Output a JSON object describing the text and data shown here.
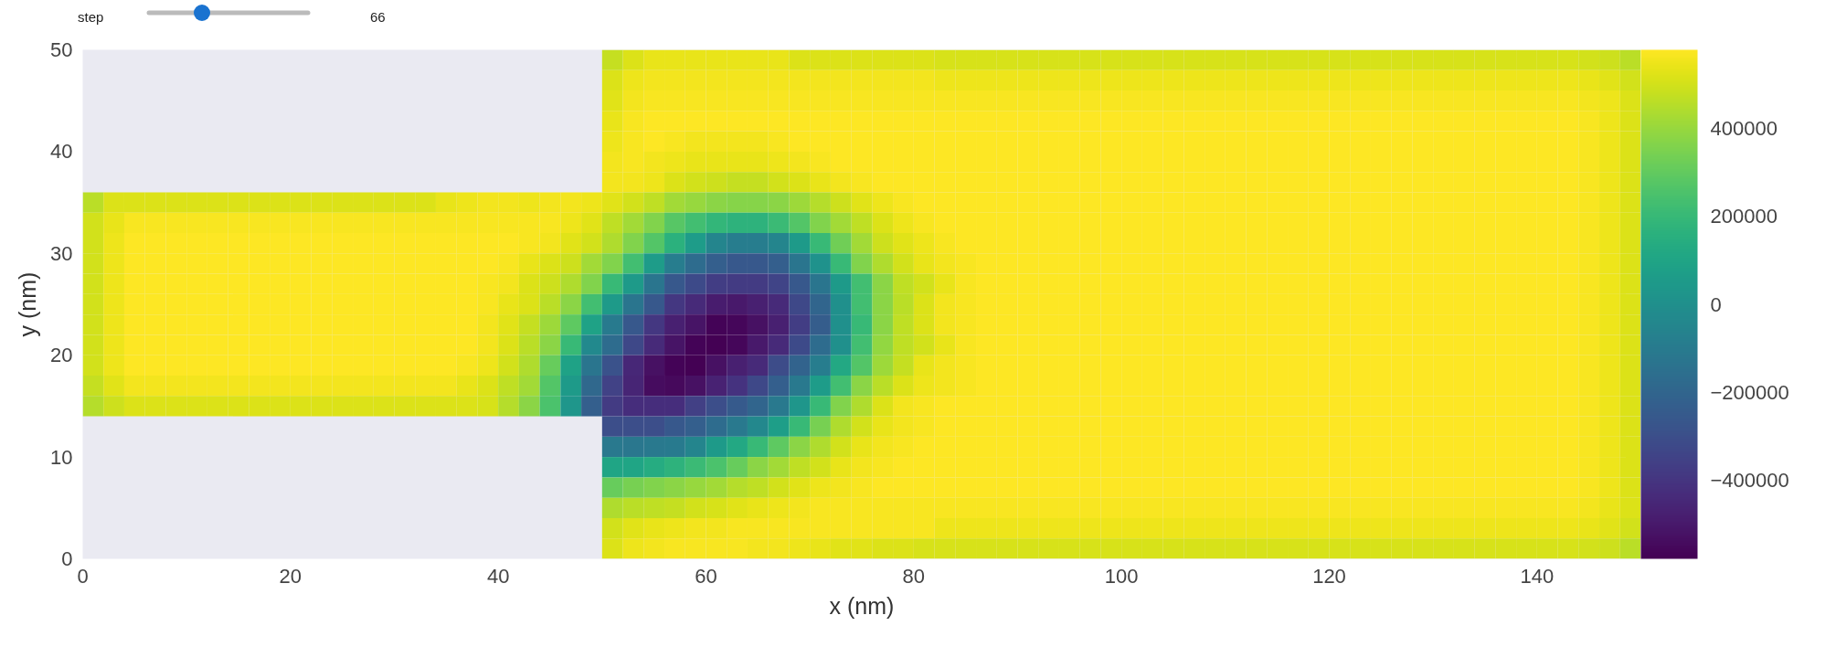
{
  "chart_data": {
    "type": "heatmap",
    "xlabel": "x (nm)",
    "ylabel": "y (nm)",
    "annotations": [
      "step",
      "66"
    ],
    "x": [
      1,
      3,
      5,
      7,
      9,
      11,
      13,
      15,
      17,
      19,
      21,
      23,
      25,
      27,
      29,
      31,
      33,
      35,
      37,
      39,
      41,
      43,
      45,
      47,
      49,
      51,
      53,
      55,
      57,
      59,
      61,
      63,
      65,
      67,
      69,
      71,
      73,
      75,
      77,
      79,
      81,
      83,
      85,
      87,
      89,
      91,
      93,
      95,
      97,
      99,
      101,
      103,
      105,
      107,
      109,
      111,
      113,
      115,
      117,
      119,
      121,
      123,
      125,
      127,
      129,
      131,
      133,
      135,
      137,
      139,
      141,
      143,
      145,
      147,
      149
    ],
    "y": [
      49,
      47,
      45,
      43,
      41,
      39,
      37,
      35,
      33,
      31,
      29,
      27,
      25,
      23,
      21,
      19,
      17,
      15,
      13,
      11,
      9,
      7,
      5,
      3,
      1
    ],
    "xlim": [
      0,
      150
    ],
    "ylim": [
      0,
      50
    ],
    "xticks": [
      0,
      20,
      40,
      60,
      80,
      100,
      120,
      140
    ],
    "yticks": [
      0,
      10,
      20,
      30,
      40,
      50
    ],
    "clim": [
      -580000,
      580000
    ],
    "cticks": [
      {
        "value": -400000,
        "label": "−400000"
      },
      {
        "value": -200000,
        "label": "−200000"
      },
      0,
      200000,
      400000
    ],
    "cells": [
      [
        null,
        null,
        null,
        null,
        null,
        null,
        null,
        null,
        null,
        null,
        null,
        null,
        null,
        null,
        null,
        null,
        null,
        null,
        null,
        null,
        null,
        null,
        null,
        null,
        null,
        480000.0,
        520000.0,
        540000.0,
        540000.0,
        540000.0,
        540000.0,
        540000.0,
        540000.0,
        540000.0,
        520000.0,
        520000.0,
        520000.0,
        520000.0,
        520000.0,
        520000.0,
        520000.0,
        510000.0,
        510000.0,
        510000.0,
        510000.0,
        510000.0,
        510000.0,
        510000.0,
        510000.0,
        510000.0,
        510000.0,
        510000.0,
        510000.0,
        510000.0,
        510000.0,
        510000.0,
        510000.0,
        510000.0,
        510000.0,
        510000.0,
        510000.0,
        510000.0,
        510000.0,
        510000.0,
        510000.0,
        510000.0,
        510000.0,
        510000.0,
        510000.0,
        510000.0,
        510000.0,
        510000.0,
        500000.0,
        490000.0,
        460000.0
      ],
      [
        null,
        null,
        null,
        null,
        null,
        null,
        null,
        null,
        null,
        null,
        null,
        null,
        null,
        null,
        null,
        null,
        null,
        null,
        null,
        null,
        null,
        null,
        null,
        null,
        null,
        520000.0,
        550000.0,
        560000.0,
        560000.0,
        560000.0,
        560000.0,
        560000.0,
        560000.0,
        560000.0,
        560000.0,
        560000.0,
        560000.0,
        560000.0,
        560000.0,
        560000.0,
        560000.0,
        550000.0,
        550000.0,
        550000.0,
        550000.0,
        550000.0,
        550000.0,
        550000.0,
        550000.0,
        550000.0,
        550000.0,
        550000.0,
        550000.0,
        550000.0,
        550000.0,
        550000.0,
        550000.0,
        550000.0,
        550000.0,
        550000.0,
        550000.0,
        550000.0,
        550000.0,
        550000.0,
        550000.0,
        550000.0,
        550000.0,
        550000.0,
        550000.0,
        550000.0,
        550000.0,
        550000.0,
        540000.0,
        530000.0,
        500000.0
      ],
      [
        null,
        null,
        null,
        null,
        null,
        null,
        null,
        null,
        null,
        null,
        null,
        null,
        null,
        null,
        null,
        null,
        null,
        null,
        null,
        null,
        null,
        null,
        null,
        null,
        null,
        530000.0,
        560000.0,
        570000.0,
        570000.0,
        570000.0,
        570000.0,
        570000.0,
        570000.0,
        570000.0,
        570000.0,
        570000.0,
        570000.0,
        570000.0,
        570000.0,
        570000.0,
        570000.0,
        570000.0,
        570000.0,
        570000.0,
        570000.0,
        570000.0,
        570000.0,
        570000.0,
        570000.0,
        570000.0,
        570000.0,
        570000.0,
        570000.0,
        570000.0,
        570000.0,
        570000.0,
        570000.0,
        570000.0,
        570000.0,
        570000.0,
        570000.0,
        570000.0,
        570000.0,
        570000.0,
        570000.0,
        570000.0,
        570000.0,
        570000.0,
        570000.0,
        570000.0,
        570000.0,
        570000.0,
        560000.0,
        550000.0,
        520000.0
      ],
      [
        null,
        null,
        null,
        null,
        null,
        null,
        null,
        null,
        null,
        null,
        null,
        null,
        null,
        null,
        null,
        null,
        null,
        null,
        null,
        null,
        null,
        null,
        null,
        null,
        null,
        540000.0,
        570000.0,
        580000.0,
        580000.0,
        580000.0,
        580000.0,
        580000.0,
        580000.0,
        580000.0,
        580000.0,
        580000.0,
        580000.0,
        580000.0,
        580000.0,
        580000.0,
        580000.0,
        580000.0,
        580000.0,
        580000.0,
        580000.0,
        580000.0,
        580000.0,
        580000.0,
        580000.0,
        580000.0,
        580000.0,
        580000.0,
        580000.0,
        580000.0,
        580000.0,
        580000.0,
        580000.0,
        580000.0,
        580000.0,
        580000.0,
        580000.0,
        580000.0,
        580000.0,
        580000.0,
        580000.0,
        580000.0,
        580000.0,
        580000.0,
        580000.0,
        580000.0,
        580000.0,
        580000.0,
        570000.0,
        550000.0,
        520000.0
      ],
      [
        null,
        null,
        null,
        null,
        null,
        null,
        null,
        null,
        null,
        null,
        null,
        null,
        null,
        null,
        null,
        null,
        null,
        null,
        null,
        null,
        null,
        null,
        null,
        null,
        null,
        550000.0,
        570000.0,
        580000.0,
        570000.0,
        560000.0,
        560000.0,
        560000.0,
        560000.0,
        570000.0,
        580000.0,
        580000.0,
        580000.0,
        580000.0,
        580000.0,
        580000.0,
        580000.0,
        580000.0,
        580000.0,
        580000.0,
        580000.0,
        580000.0,
        580000.0,
        580000.0,
        580000.0,
        580000.0,
        580000.0,
        580000.0,
        580000.0,
        580000.0,
        580000.0,
        580000.0,
        580000.0,
        580000.0,
        580000.0,
        580000.0,
        580000.0,
        580000.0,
        580000.0,
        580000.0,
        580000.0,
        580000.0,
        580000.0,
        580000.0,
        580000.0,
        580000.0,
        580000.0,
        580000.0,
        570000.0,
        550000.0,
        520000.0
      ],
      [
        null,
        null,
        null,
        null,
        null,
        null,
        null,
        null,
        null,
        null,
        null,
        null,
        null,
        null,
        null,
        null,
        null,
        null,
        null,
        null,
        null,
        null,
        null,
        null,
        null,
        560000.0,
        570000.0,
        560000.0,
        550000.0,
        540000.0,
        540000.0,
        540000.0,
        540000.0,
        550000.0,
        560000.0,
        570000.0,
        580000.0,
        580000.0,
        580000.0,
        580000.0,
        580000.0,
        580000.0,
        580000.0,
        580000.0,
        580000.0,
        580000.0,
        580000.0,
        580000.0,
        580000.0,
        580000.0,
        580000.0,
        580000.0,
        580000.0,
        580000.0,
        580000.0,
        580000.0,
        580000.0,
        580000.0,
        580000.0,
        580000.0,
        580000.0,
        580000.0,
        580000.0,
        580000.0,
        580000.0,
        580000.0,
        580000.0,
        580000.0,
        580000.0,
        580000.0,
        580000.0,
        580000.0,
        570000.0,
        550000.0,
        520000.0
      ],
      [
        null,
        null,
        null,
        null,
        null,
        null,
        null,
        null,
        null,
        null,
        null,
        null,
        null,
        null,
        null,
        null,
        null,
        null,
        null,
        null,
        null,
        null,
        null,
        null,
        null,
        560000.0,
        560000.0,
        550000.0,
        520000.0,
        500000.0,
        490000.0,
        480000.0,
        480000.0,
        500000.0,
        520000.0,
        540000.0,
        560000.0,
        570000.0,
        580000.0,
        580000.0,
        580000.0,
        580000.0,
        580000.0,
        580000.0,
        580000.0,
        580000.0,
        580000.0,
        580000.0,
        580000.0,
        580000.0,
        580000.0,
        580000.0,
        580000.0,
        580000.0,
        580000.0,
        580000.0,
        580000.0,
        580000.0,
        580000.0,
        580000.0,
        580000.0,
        580000.0,
        580000.0,
        580000.0,
        580000.0,
        580000.0,
        580000.0,
        580000.0,
        580000.0,
        580000.0,
        580000.0,
        580000.0,
        570000.0,
        550000.0,
        520000.0
      ],
      [
        460000.0,
        520000.0,
        520000.0,
        520000.0,
        520000.0,
        520000.0,
        520000.0,
        520000.0,
        520000.0,
        520000.0,
        520000.0,
        520000.0,
        520000.0,
        520000.0,
        520000.0,
        520000.0,
        520000.0,
        540000.0,
        550000.0,
        560000.0,
        560000.0,
        550000.0,
        560000.0,
        560000.0,
        550000.0,
        530000.0,
        500000.0,
        470000.0,
        420000.0,
        400000.0,
        380000.0,
        370000.0,
        370000.0,
        380000.0,
        410000.0,
        450000.0,
        490000.0,
        530000.0,
        550000.0,
        570000.0,
        580000.0,
        580000.0,
        580000.0,
        580000.0,
        580000.0,
        580000.0,
        580000.0,
        580000.0,
        580000.0,
        580000.0,
        580000.0,
        580000.0,
        580000.0,
        580000.0,
        580000.0,
        580000.0,
        580000.0,
        580000.0,
        580000.0,
        580000.0,
        580000.0,
        580000.0,
        580000.0,
        580000.0,
        580000.0,
        580000.0,
        580000.0,
        580000.0,
        580000.0,
        580000.0,
        580000.0,
        580000.0,
        570000.0,
        550000.0,
        520000.0
      ],
      [
        500000.0,
        540000.0,
        570000.0,
        570000.0,
        570000.0,
        570000.0,
        570000.0,
        570000.0,
        570000.0,
        570000.0,
        570000.0,
        570000.0,
        570000.0,
        570000.0,
        570000.0,
        570000.0,
        570000.0,
        570000.0,
        570000.0,
        570000.0,
        570000.0,
        570000.0,
        570000.0,
        550000.0,
        530000.0,
        470000.0,
        420000.0,
        360000.0,
        280000.0,
        230000.0,
        190000.0,
        170000.0,
        170000.0,
        210000.0,
        270000.0,
        360000.0,
        420000.0,
        470000.0,
        520000.0,
        550000.0,
        570000.0,
        580000.0,
        580000.0,
        580000.0,
        580000.0,
        580000.0,
        580000.0,
        580000.0,
        580000.0,
        580000.0,
        580000.0,
        580000.0,
        580000.0,
        580000.0,
        580000.0,
        580000.0,
        580000.0,
        580000.0,
        580000.0,
        580000.0,
        580000.0,
        580000.0,
        580000.0,
        580000.0,
        580000.0,
        580000.0,
        580000.0,
        580000.0,
        580000.0,
        580000.0,
        580000.0,
        580000.0,
        570000.0,
        550000.0,
        520000.0
      ],
      [
        500000.0,
        550000.0,
        580000.0,
        580000.0,
        580000.0,
        580000.0,
        580000.0,
        580000.0,
        580000.0,
        580000.0,
        580000.0,
        580000.0,
        580000.0,
        580000.0,
        580000.0,
        580000.0,
        580000.0,
        580000.0,
        580000.0,
        580000.0,
        580000.0,
        570000.0,
        560000.0,
        530000.0,
        500000.0,
        440000.0,
        360000.0,
        270000.0,
        160000.0,
        60000.0,
        -50000.0,
        -90000.0,
        -90000.0,
        -50000.0,
        50000.0,
        200000.0,
        330000.0,
        420000.0,
        490000.0,
        530000.0,
        550000.0,
        570000.0,
        580000.0,
        580000.0,
        580000.0,
        580000.0,
        580000.0,
        580000.0,
        580000.0,
        580000.0,
        580000.0,
        580000.0,
        580000.0,
        580000.0,
        580000.0,
        580000.0,
        580000.0,
        580000.0,
        580000.0,
        580000.0,
        580000.0,
        580000.0,
        580000.0,
        580000.0,
        580000.0,
        580000.0,
        580000.0,
        580000.0,
        580000.0,
        580000.0,
        580000.0,
        580000.0,
        570000.0,
        550000.0,
        520000.0
      ],
      [
        500000.0,
        550000.0,
        580000.0,
        580000.0,
        580000.0,
        580000.0,
        580000.0,
        580000.0,
        580000.0,
        580000.0,
        580000.0,
        580000.0,
        580000.0,
        580000.0,
        580000.0,
        580000.0,
        580000.0,
        580000.0,
        580000.0,
        580000.0,
        570000.0,
        540000.0,
        520000.0,
        490000.0,
        420000.0,
        360000.0,
        230000.0,
        60000.0,
        -90000.0,
        -170000.0,
        -230000.0,
        -260000.0,
        -260000.0,
        -230000.0,
        -130000.0,
        10000.0,
        200000.0,
        360000.0,
        440000.0,
        500000.0,
        540000.0,
        560000.0,
        570000.0,
        580000.0,
        580000.0,
        580000.0,
        580000.0,
        580000.0,
        580000.0,
        580000.0,
        580000.0,
        580000.0,
        580000.0,
        580000.0,
        580000.0,
        580000.0,
        580000.0,
        580000.0,
        580000.0,
        580000.0,
        580000.0,
        580000.0,
        580000.0,
        580000.0,
        580000.0,
        580000.0,
        580000.0,
        580000.0,
        580000.0,
        580000.0,
        580000.0,
        580000.0,
        570000.0,
        550000.0,
        520000.0
      ],
      [
        500000.0,
        550000.0,
        580000.0,
        580000.0,
        580000.0,
        580000.0,
        580000.0,
        580000.0,
        580000.0,
        580000.0,
        580000.0,
        580000.0,
        580000.0,
        580000.0,
        580000.0,
        580000.0,
        580000.0,
        580000.0,
        580000.0,
        570000.0,
        560000.0,
        520000.0,
        490000.0,
        440000.0,
        360000.0,
        200000.0,
        50000.0,
        -130000.0,
        -260000.0,
        -320000.0,
        -370000.0,
        -380000.0,
        -380000.0,
        -340000.0,
        -260000.0,
        -130000.0,
        50000.0,
        230000.0,
        380000.0,
        470000.0,
        500000.0,
        540000.0,
        570000.0,
        580000.0,
        580000.0,
        580000.0,
        580000.0,
        580000.0,
        580000.0,
        580000.0,
        580000.0,
        580000.0,
        580000.0,
        580000.0,
        580000.0,
        580000.0,
        580000.0,
        580000.0,
        580000.0,
        580000.0,
        580000.0,
        580000.0,
        580000.0,
        580000.0,
        580000.0,
        580000.0,
        580000.0,
        580000.0,
        580000.0,
        580000.0,
        580000.0,
        580000.0,
        570000.0,
        550000.0,
        520000.0
      ],
      [
        500000.0,
        550000.0,
        580000.0,
        580000.0,
        580000.0,
        580000.0,
        580000.0,
        580000.0,
        580000.0,
        580000.0,
        580000.0,
        580000.0,
        580000.0,
        580000.0,
        580000.0,
        580000.0,
        580000.0,
        580000.0,
        580000.0,
        570000.0,
        540000.0,
        520000.0,
        460000.0,
        380000.0,
        230000.0,
        50000.0,
        -130000.0,
        -260000.0,
        -390000.0,
        -440000.0,
        -490000.0,
        -500000.0,
        -480000.0,
        -440000.0,
        -330000.0,
        -200000.0,
        0,
        230000.0,
        380000.0,
        460000.0,
        520000.0,
        560000.0,
        570000.0,
        580000.0,
        580000.0,
        580000.0,
        580000.0,
        580000.0,
        580000.0,
        580000.0,
        580000.0,
        580000.0,
        580000.0,
        580000.0,
        580000.0,
        580000.0,
        580000.0,
        580000.0,
        580000.0,
        580000.0,
        580000.0,
        580000.0,
        580000.0,
        580000.0,
        580000.0,
        580000.0,
        580000.0,
        580000.0,
        580000.0,
        580000.0,
        580000.0,
        580000.0,
        570000.0,
        550000.0,
        520000.0
      ],
      [
        500000.0,
        550000.0,
        580000.0,
        580000.0,
        580000.0,
        580000.0,
        580000.0,
        580000.0,
        580000.0,
        580000.0,
        580000.0,
        580000.0,
        580000.0,
        580000.0,
        580000.0,
        580000.0,
        580000.0,
        580000.0,
        580000.0,
        560000.0,
        530000.0,
        480000.0,
        410000.0,
        290000.0,
        90000.0,
        -100000.0,
        -260000.0,
        -390000.0,
        -480000.0,
        -520000.0,
        -570000.0,
        -560000.0,
        -530000.0,
        -480000.0,
        -370000.0,
        -240000.0,
        0,
        200000.0,
        380000.0,
        470000.0,
        520000.0,
        560000.0,
        570000.0,
        580000.0,
        580000.0,
        580000.0,
        580000.0,
        580000.0,
        580000.0,
        580000.0,
        580000.0,
        580000.0,
        580000.0,
        580000.0,
        580000.0,
        580000.0,
        580000.0,
        580000.0,
        580000.0,
        580000.0,
        580000.0,
        580000.0,
        580000.0,
        580000.0,
        580000.0,
        580000.0,
        580000.0,
        580000.0,
        580000.0,
        580000.0,
        580000.0,
        580000.0,
        570000.0,
        550000.0,
        520000.0
      ],
      [
        500000.0,
        550000.0,
        580000.0,
        580000.0,
        580000.0,
        580000.0,
        580000.0,
        580000.0,
        580000.0,
        580000.0,
        580000.0,
        580000.0,
        580000.0,
        580000.0,
        580000.0,
        580000.0,
        580000.0,
        580000.0,
        580000.0,
        560000.0,
        520000.0,
        460000.0,
        380000.0,
        200000.0,
        -30000.0,
        -170000.0,
        -330000.0,
        -440000.0,
        -520000.0,
        -570000.0,
        -580000.0,
        -560000.0,
        -500000.0,
        -440000.0,
        -320000.0,
        -170000.0,
        0,
        230000.0,
        390000.0,
        470000.0,
        500000.0,
        540000.0,
        570000.0,
        580000.0,
        580000.0,
        580000.0,
        580000.0,
        580000.0,
        580000.0,
        580000.0,
        580000.0,
        580000.0,
        580000.0,
        580000.0,
        580000.0,
        580000.0,
        580000.0,
        580000.0,
        580000.0,
        580000.0,
        580000.0,
        580000.0,
        580000.0,
        580000.0,
        580000.0,
        580000.0,
        580000.0,
        580000.0,
        580000.0,
        580000.0,
        580000.0,
        580000.0,
        570000.0,
        550000.0,
        520000.0
      ],
      [
        500000.0,
        550000.0,
        580000.0,
        580000.0,
        580000.0,
        580000.0,
        580000.0,
        580000.0,
        580000.0,
        580000.0,
        580000.0,
        580000.0,
        580000.0,
        580000.0,
        580000.0,
        580000.0,
        580000.0,
        580000.0,
        570000.0,
        550000.0,
        500000.0,
        440000.0,
        310000.0,
        90000.0,
        -130000.0,
        -290000.0,
        -450000.0,
        -530000.0,
        -570000.0,
        -580000.0,
        -530000.0,
        -480000.0,
        -440000.0,
        -310000.0,
        -210000.0,
        -90000.0,
        120000.0,
        270000.0,
        410000.0,
        480000.0,
        540000.0,
        560000.0,
        570000.0,
        580000.0,
        580000.0,
        580000.0,
        580000.0,
        580000.0,
        580000.0,
        580000.0,
        580000.0,
        580000.0,
        580000.0,
        580000.0,
        580000.0,
        580000.0,
        580000.0,
        580000.0,
        580000.0,
        580000.0,
        580000.0,
        580000.0,
        580000.0,
        580000.0,
        580000.0,
        580000.0,
        580000.0,
        580000.0,
        580000.0,
        580000.0,
        580000.0,
        580000.0,
        570000.0,
        550000.0,
        520000.0
      ],
      [
        480000.0,
        530000.0,
        560000.0,
        560000.0,
        560000.0,
        560000.0,
        560000.0,
        560000.0,
        560000.0,
        560000.0,
        560000.0,
        560000.0,
        560000.0,
        560000.0,
        560000.0,
        560000.0,
        560000.0,
        560000.0,
        540000.0,
        520000.0,
        470000.0,
        420000.0,
        270000.0,
        50000.0,
        -190000.0,
        -350000.0,
        -460000.0,
        -540000.0,
        -550000.0,
        -530000.0,
        -470000.0,
        -410000.0,
        -330000.0,
        -230000.0,
        -110000.0,
        60000.0,
        230000.0,
        380000.0,
        460000.0,
        520000.0,
        550000.0,
        560000.0,
        570000.0,
        580000.0,
        580000.0,
        580000.0,
        580000.0,
        580000.0,
        580000.0,
        580000.0,
        580000.0,
        580000.0,
        580000.0,
        580000.0,
        580000.0,
        580000.0,
        580000.0,
        580000.0,
        580000.0,
        580000.0,
        580000.0,
        580000.0,
        580000.0,
        580000.0,
        580000.0,
        580000.0,
        580000.0,
        580000.0,
        580000.0,
        580000.0,
        580000.0,
        580000.0,
        570000.0,
        550000.0,
        520000.0
      ],
      [
        450000.0,
        490000.0,
        520000.0,
        520000.0,
        520000.0,
        520000.0,
        520000.0,
        520000.0,
        520000.0,
        520000.0,
        520000.0,
        520000.0,
        520000.0,
        520000.0,
        520000.0,
        520000.0,
        520000.0,
        520000.0,
        520000.0,
        510000.0,
        450000.0,
        380000.0,
        250000.0,
        30000.0,
        -230000.0,
        -380000.0,
        -430000.0,
        -430000.0,
        -430000.0,
        -360000.0,
        -300000.0,
        -250000.0,
        -200000.0,
        -110000.0,
        30000.0,
        200000.0,
        360000.0,
        440000.0,
        520000.0,
        560000.0,
        570000.0,
        580000.0,
        580000.0,
        580000.0,
        580000.0,
        580000.0,
        580000.0,
        580000.0,
        580000.0,
        580000.0,
        580000.0,
        580000.0,
        580000.0,
        580000.0,
        580000.0,
        580000.0,
        580000.0,
        580000.0,
        580000.0,
        580000.0,
        580000.0,
        580000.0,
        580000.0,
        580000.0,
        580000.0,
        580000.0,
        580000.0,
        580000.0,
        580000.0,
        580000.0,
        580000.0,
        580000.0,
        570000.0,
        550000.0,
        520000.0
      ],
      [
        null,
        null,
        null,
        null,
        null,
        null,
        null,
        null,
        null,
        null,
        null,
        null,
        null,
        null,
        null,
        null,
        null,
        null,
        null,
        null,
        null,
        null,
        null,
        null,
        null,
        -300000.0,
        -300000.0,
        -300000.0,
        -260000.0,
        -230000.0,
        -170000.0,
        -110000.0,
        -40000.0,
        70000.0,
        200000.0,
        340000.0,
        440000.0,
        500000.0,
        540000.0,
        560000.0,
        570000.0,
        580000.0,
        580000.0,
        580000.0,
        580000.0,
        580000.0,
        580000.0,
        580000.0,
        580000.0,
        580000.0,
        580000.0,
        580000.0,
        580000.0,
        580000.0,
        580000.0,
        580000.0,
        580000.0,
        580000.0,
        580000.0,
        580000.0,
        580000.0,
        580000.0,
        580000.0,
        580000.0,
        580000.0,
        580000.0,
        580000.0,
        580000.0,
        580000.0,
        580000.0,
        580000.0,
        580000.0,
        570000.0,
        550000.0,
        520000.0
      ],
      [
        null,
        null,
        null,
        null,
        null,
        null,
        null,
        null,
        null,
        null,
        null,
        null,
        null,
        null,
        null,
        null,
        null,
        null,
        null,
        null,
        null,
        null,
        null,
        null,
        null,
        -110000.0,
        -120000.0,
        -110000.0,
        -100000.0,
        -50000.0,
        50000.0,
        120000.0,
        200000.0,
        290000.0,
        380000.0,
        440000.0,
        500000.0,
        540000.0,
        560000.0,
        570000.0,
        580000.0,
        580000.0,
        580000.0,
        580000.0,
        580000.0,
        580000.0,
        580000.0,
        580000.0,
        580000.0,
        580000.0,
        580000.0,
        580000.0,
        580000.0,
        580000.0,
        580000.0,
        580000.0,
        580000.0,
        580000.0,
        580000.0,
        580000.0,
        580000.0,
        580000.0,
        580000.0,
        580000.0,
        580000.0,
        580000.0,
        580000.0,
        580000.0,
        580000.0,
        580000.0,
        580000.0,
        580000.0,
        570000.0,
        550000.0,
        520000.0
      ],
      [
        null,
        null,
        null,
        null,
        null,
        null,
        null,
        null,
        null,
        null,
        null,
        null,
        null,
        null,
        null,
        null,
        null,
        null,
        null,
        null,
        null,
        null,
        null,
        null,
        null,
        100000.0,
        100000.0,
        140000.0,
        170000.0,
        210000.0,
        250000.0,
        310000.0,
        380000.0,
        420000.0,
        470000.0,
        500000.0,
        540000.0,
        560000.0,
        570000.0,
        580000.0,
        580000.0,
        580000.0,
        580000.0,
        580000.0,
        580000.0,
        580000.0,
        580000.0,
        580000.0,
        580000.0,
        580000.0,
        580000.0,
        580000.0,
        580000.0,
        580000.0,
        580000.0,
        580000.0,
        580000.0,
        580000.0,
        580000.0,
        580000.0,
        580000.0,
        580000.0,
        580000.0,
        580000.0,
        580000.0,
        580000.0,
        580000.0,
        580000.0,
        580000.0,
        580000.0,
        580000.0,
        580000.0,
        570000.0,
        550000.0,
        520000.0
      ],
      [
        null,
        null,
        null,
        null,
        null,
        null,
        null,
        null,
        null,
        null,
        null,
        null,
        null,
        null,
        null,
        null,
        null,
        null,
        null,
        null,
        null,
        null,
        null,
        null,
        null,
        310000.0,
        340000.0,
        360000.0,
        380000.0,
        400000.0,
        420000.0,
        450000.0,
        470000.0,
        500000.0,
        530000.0,
        550000.0,
        560000.0,
        570000.0,
        580000.0,
        580000.0,
        580000.0,
        580000.0,
        580000.0,
        580000.0,
        580000.0,
        580000.0,
        580000.0,
        580000.0,
        580000.0,
        580000.0,
        580000.0,
        580000.0,
        580000.0,
        580000.0,
        580000.0,
        580000.0,
        580000.0,
        580000.0,
        580000.0,
        580000.0,
        580000.0,
        580000.0,
        580000.0,
        580000.0,
        580000.0,
        580000.0,
        580000.0,
        580000.0,
        580000.0,
        580000.0,
        580000.0,
        580000.0,
        570000.0,
        550000.0,
        520000.0
      ],
      [
        null,
        null,
        null,
        null,
        null,
        null,
        null,
        null,
        null,
        null,
        null,
        null,
        null,
        null,
        null,
        null,
        null,
        null,
        null,
        null,
        null,
        null,
        null,
        null,
        null,
        440000.0,
        460000.0,
        470000.0,
        480000.0,
        500000.0,
        510000.0,
        530000.0,
        540000.0,
        550000.0,
        560000.0,
        570000.0,
        570000.0,
        570000.0,
        570000.0,
        570000.0,
        570000.0,
        570000.0,
        570000.0,
        570000.0,
        570000.0,
        570000.0,
        570000.0,
        570000.0,
        570000.0,
        570000.0,
        570000.0,
        570000.0,
        570000.0,
        570000.0,
        570000.0,
        570000.0,
        570000.0,
        570000.0,
        570000.0,
        570000.0,
        570000.0,
        570000.0,
        570000.0,
        570000.0,
        570000.0,
        570000.0,
        570000.0,
        570000.0,
        570000.0,
        570000.0,
        570000.0,
        570000.0,
        560000.0,
        540000.0,
        520000.0
      ],
      [
        null,
        null,
        null,
        null,
        null,
        null,
        null,
        null,
        null,
        null,
        null,
        null,
        null,
        null,
        null,
        null,
        null,
        null,
        null,
        null,
        null,
        null,
        null,
        null,
        null,
        500000.0,
        530000.0,
        540000.0,
        550000.0,
        560000.0,
        560000.0,
        570000.0,
        570000.0,
        570000.0,
        570000.0,
        570000.0,
        570000.0,
        570000.0,
        570000.0,
        570000.0,
        570000.0,
        550000.0,
        550000.0,
        550000.0,
        550000.0,
        550000.0,
        550000.0,
        550000.0,
        550000.0,
        550000.0,
        550000.0,
        550000.0,
        550000.0,
        550000.0,
        550000.0,
        550000.0,
        550000.0,
        550000.0,
        550000.0,
        550000.0,
        550000.0,
        550000.0,
        550000.0,
        550000.0,
        550000.0,
        550000.0,
        550000.0,
        550000.0,
        550000.0,
        550000.0,
        550000.0,
        550000.0,
        540000.0,
        530000.0,
        500000.0
      ],
      [
        null,
        null,
        null,
        null,
        null,
        null,
        null,
        null,
        null,
        null,
        null,
        null,
        null,
        null,
        null,
        null,
        null,
        null,
        null,
        null,
        null,
        null,
        null,
        null,
        null,
        520000.0,
        550000.0,
        560000.0,
        570000.0,
        570000.0,
        570000.0,
        570000.0,
        560000.0,
        560000.0,
        550000.0,
        540000.0,
        530000.0,
        530000.0,
        520000.0,
        520000.0,
        510000.0,
        510000.0,
        510000.0,
        510000.0,
        510000.0,
        510000.0,
        510000.0,
        510000.0,
        510000.0,
        510000.0,
        510000.0,
        510000.0,
        510000.0,
        510000.0,
        510000.0,
        510000.0,
        510000.0,
        510000.0,
        510000.0,
        510000.0,
        510000.0,
        510000.0,
        510000.0,
        510000.0,
        510000.0,
        510000.0,
        510000.0,
        510000.0,
        510000.0,
        510000.0,
        510000.0,
        510000.0,
        500000.0,
        490000.0,
        460000.0
      ]
    ]
  }
}
